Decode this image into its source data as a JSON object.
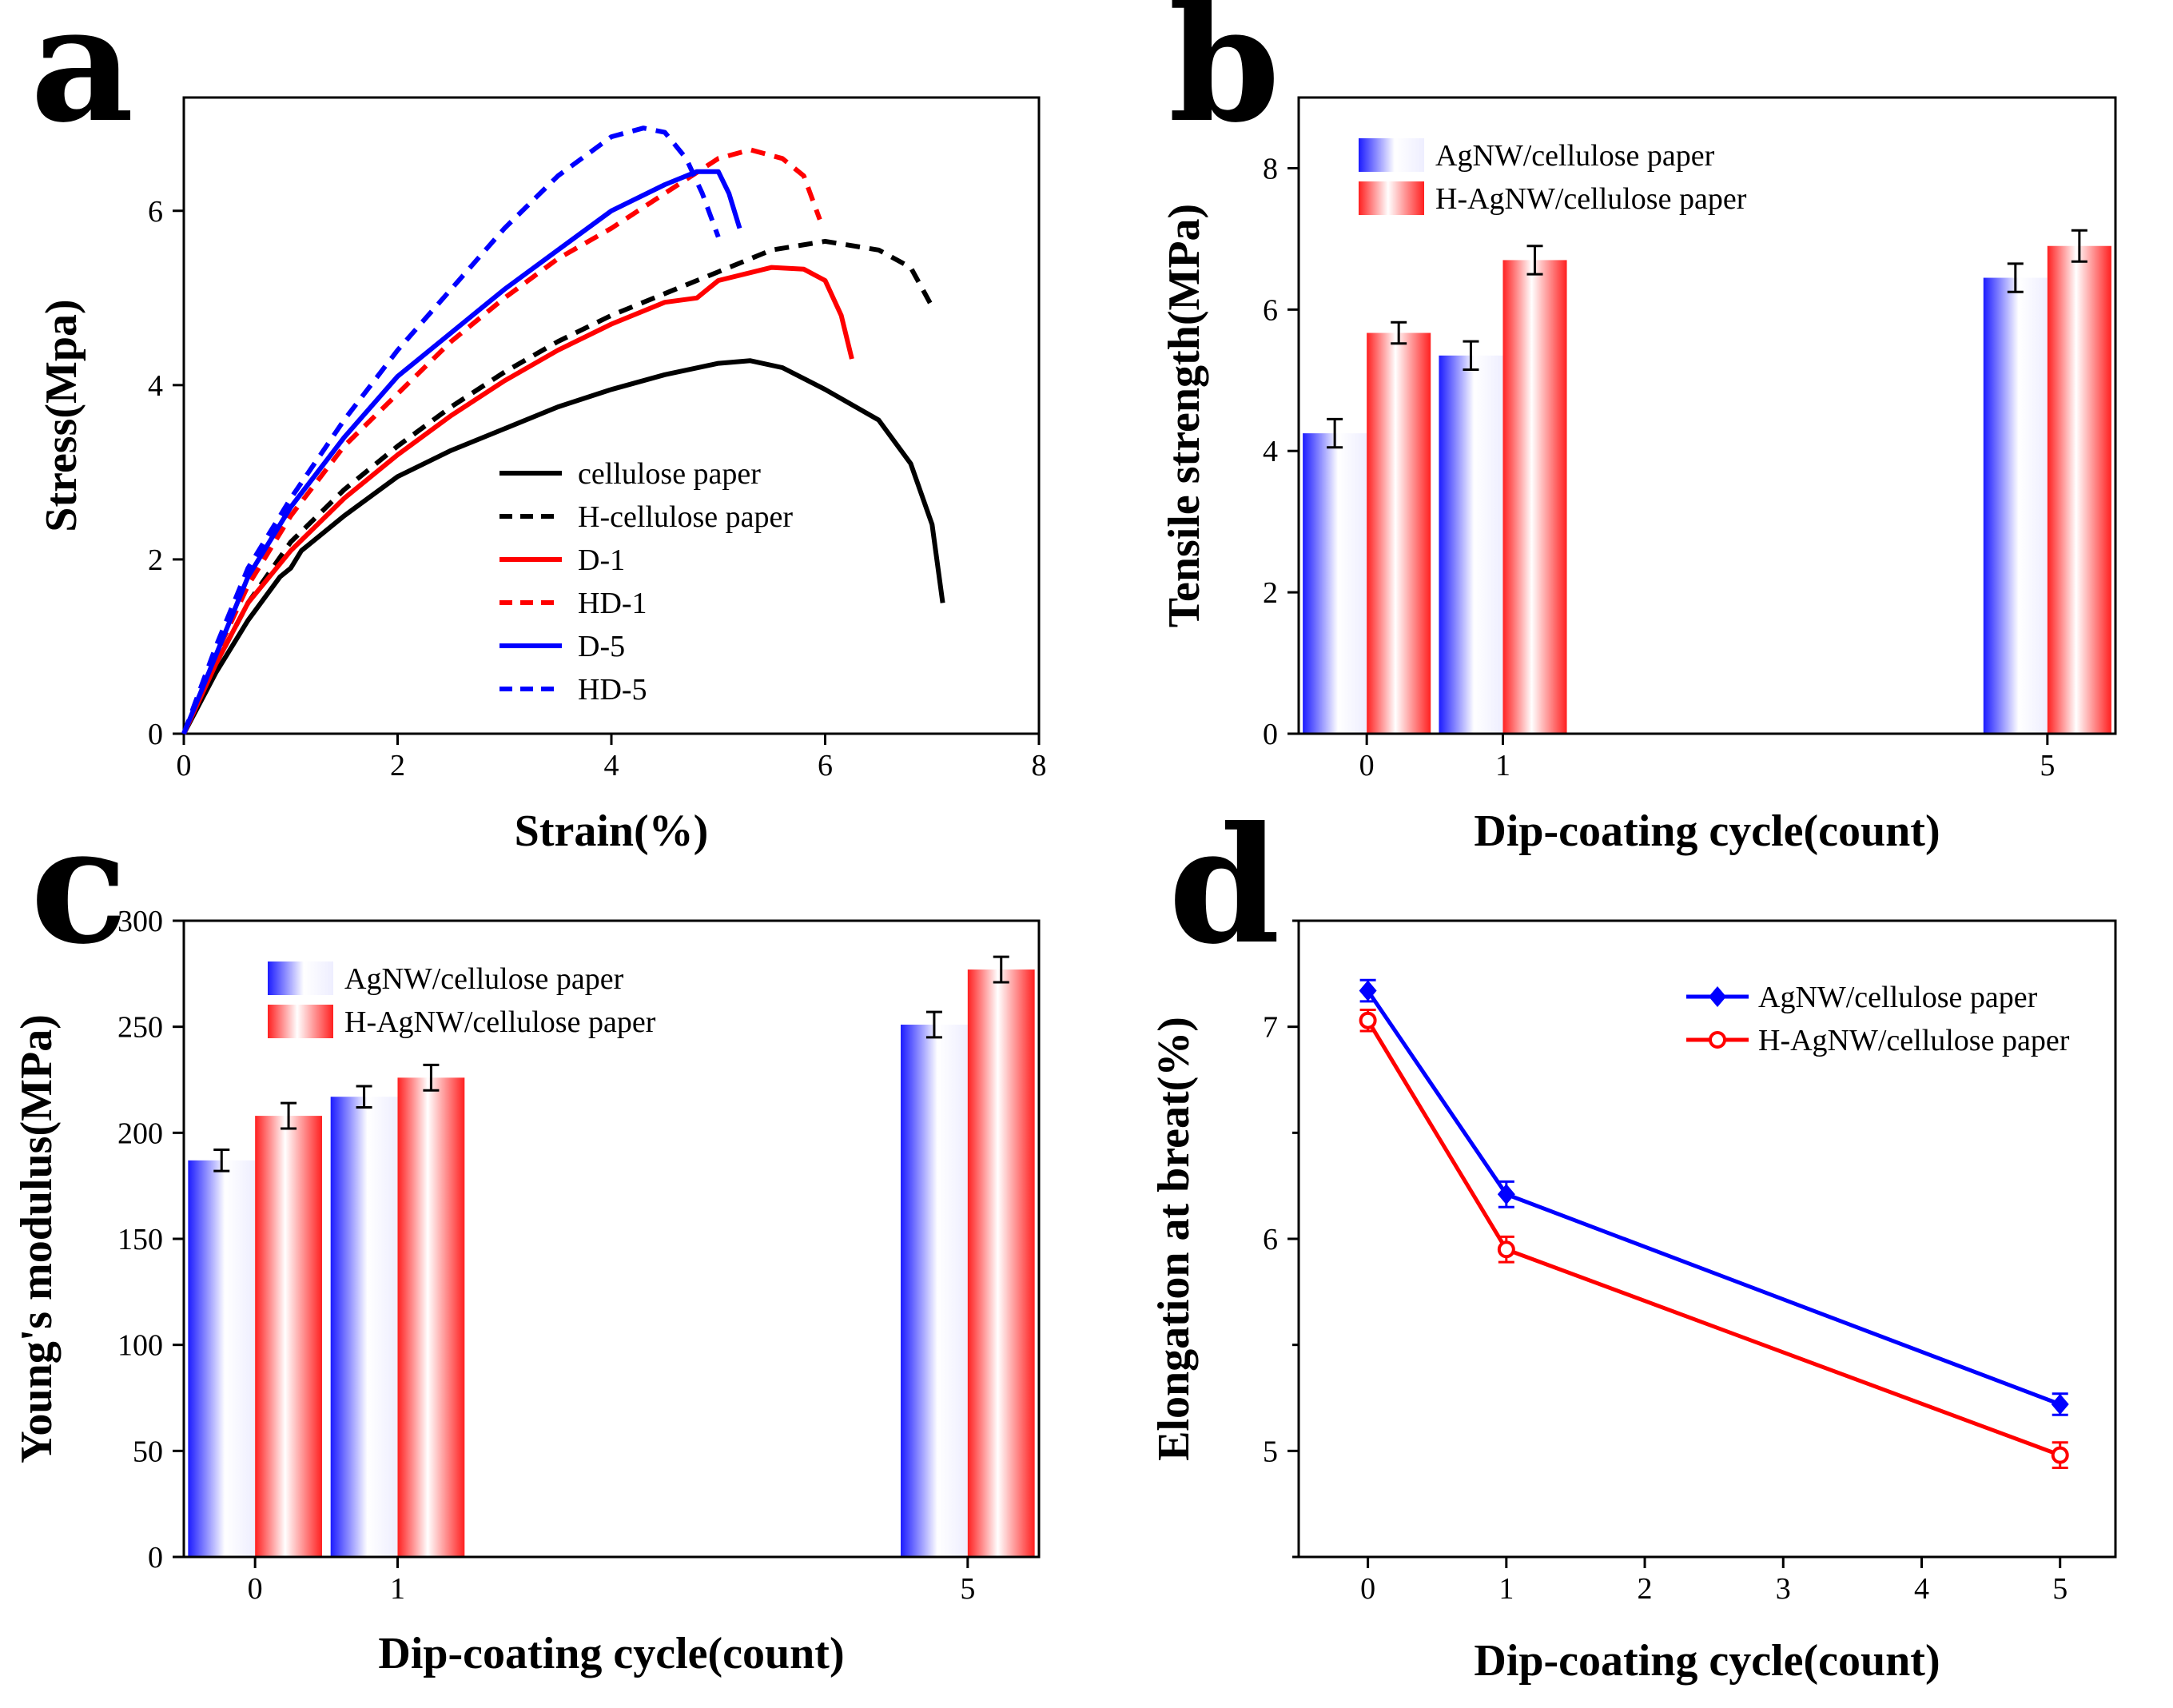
{
  "colors": {
    "black": "#000000",
    "red": "#ff0000",
    "blue": "#0000ff",
    "bar_blue_edge": "#2b2bff",
    "bar_red_edge": "#ff2b2b"
  },
  "chart_data": [
    {
      "id": "a",
      "panel_letter": "a",
      "type": "line",
      "xlabel": "Strain(%)",
      "ylabel": "Stress(Mpa)",
      "xlim": [
        0,
        8
      ],
      "ylim": [
        0,
        7.3
      ],
      "xticks": [
        "0",
        "2",
        "4",
        "6",
        "8"
      ],
      "yticks": [
        "0",
        "2",
        "4",
        "6"
      ],
      "legend": [
        {
          "label": "cellulose paper",
          "color": "#000000",
          "dash": false
        },
        {
          "label": "H-cellulose paper",
          "color": "#000000",
          "dash": true
        },
        {
          "label": "D-1",
          "color": "#ff0000",
          "dash": false
        },
        {
          "label": "HD-1",
          "color": "#ff0000",
          "dash": true
        },
        {
          "label": "D-5",
          "color": "#0000ff",
          "dash": false
        },
        {
          "label": "HD-5",
          "color": "#0000ff",
          "dash": true
        }
      ],
      "series": [
        {
          "name": "cellulose paper",
          "color": "#000000",
          "dash": false,
          "points": [
            [
              0,
              0
            ],
            [
              0.3,
              0.7
            ],
            [
              0.6,
              1.3
            ],
            [
              0.9,
              1.8
            ],
            [
              1.0,
              1.9
            ],
            [
              1.1,
              2.1
            ],
            [
              1.5,
              2.5
            ],
            [
              2,
              2.95
            ],
            [
              2.5,
              3.25
            ],
            [
              3,
              3.5
            ],
            [
              3.5,
              3.75
            ],
            [
              4,
              3.95
            ],
            [
              4.5,
              4.12
            ],
            [
              5,
              4.25
            ],
            [
              5.3,
              4.28
            ],
            [
              5.6,
              4.2
            ],
            [
              6,
              3.95
            ],
            [
              6.5,
              3.6
            ],
            [
              6.8,
              3.1
            ],
            [
              7.0,
              2.4
            ],
            [
              7.1,
              1.5
            ]
          ]
        },
        {
          "name": "H-cellulose paper",
          "color": "#000000",
          "dash": true,
          "points": [
            [
              0,
              0
            ],
            [
              0.3,
              0.8
            ],
            [
              0.6,
              1.5
            ],
            [
              1,
              2.2
            ],
            [
              1.5,
              2.8
            ],
            [
              2,
              3.3
            ],
            [
              2.5,
              3.75
            ],
            [
              3,
              4.15
            ],
            [
              3.5,
              4.5
            ],
            [
              4,
              4.8
            ],
            [
              4.5,
              5.05
            ],
            [
              5,
              5.3
            ],
            [
              5.5,
              5.55
            ],
            [
              6,
              5.65
            ],
            [
              6.5,
              5.55
            ],
            [
              6.8,
              5.35
            ],
            [
              7.0,
              4.9
            ]
          ]
        },
        {
          "name": "D-1",
          "color": "#ff0000",
          "dash": false,
          "points": [
            [
              0,
              0
            ],
            [
              0.3,
              0.8
            ],
            [
              0.6,
              1.5
            ],
            [
              1,
              2.1
            ],
            [
              1.5,
              2.7
            ],
            [
              2,
              3.2
            ],
            [
              2.5,
              3.65
            ],
            [
              3,
              4.05
            ],
            [
              3.5,
              4.4
            ],
            [
              4,
              4.7
            ],
            [
              4.5,
              4.95
            ],
            [
              4.8,
              5.0
            ],
            [
              5,
              5.2
            ],
            [
              5.5,
              5.35
            ],
            [
              5.8,
              5.33
            ],
            [
              6.0,
              5.2
            ],
            [
              6.15,
              4.8
            ],
            [
              6.25,
              4.3
            ]
          ]
        },
        {
          "name": "HD-1",
          "color": "#ff0000",
          "dash": true,
          "points": [
            [
              0,
              0
            ],
            [
              0.3,
              0.9
            ],
            [
              0.6,
              1.7
            ],
            [
              1,
              2.5
            ],
            [
              1.5,
              3.3
            ],
            [
              2,
              3.9
            ],
            [
              2.5,
              4.5
            ],
            [
              3,
              5.0
            ],
            [
              3.5,
              5.45
            ],
            [
              4,
              5.8
            ],
            [
              4.5,
              6.2
            ],
            [
              5,
              6.6
            ],
            [
              5.3,
              6.7
            ],
            [
              5.6,
              6.6
            ],
            [
              5.8,
              6.4
            ],
            [
              5.95,
              5.9
            ]
          ]
        },
        {
          "name": "D-5",
          "color": "#0000ff",
          "dash": false,
          "points": [
            [
              0,
              0
            ],
            [
              0.3,
              0.9
            ],
            [
              0.6,
              1.8
            ],
            [
              1,
              2.6
            ],
            [
              1.5,
              3.4
            ],
            [
              2,
              4.1
            ],
            [
              2.5,
              4.6
            ],
            [
              3,
              5.1
            ],
            [
              3.5,
              5.55
            ],
            [
              4,
              6.0
            ],
            [
              4.5,
              6.3
            ],
            [
              4.8,
              6.45
            ],
            [
              5.0,
              6.45
            ],
            [
              5.1,
              6.2
            ],
            [
              5.2,
              5.8
            ]
          ]
        },
        {
          "name": "HD-5",
          "color": "#0000ff",
          "dash": true,
          "points": [
            [
              0,
              0
            ],
            [
              0.3,
              1.0
            ],
            [
              0.6,
              1.9
            ],
            [
              1,
              2.7
            ],
            [
              1.5,
              3.6
            ],
            [
              2,
              4.4
            ],
            [
              2.5,
              5.1
            ],
            [
              3,
              5.8
            ],
            [
              3.5,
              6.4
            ],
            [
              4,
              6.85
            ],
            [
              4.3,
              6.95
            ],
            [
              4.5,
              6.9
            ],
            [
              4.7,
              6.6
            ],
            [
              4.85,
              6.2
            ],
            [
              5.0,
              5.7
            ]
          ]
        }
      ]
    },
    {
      "id": "b",
      "panel_letter": "b",
      "type": "bar",
      "xlabel": "Dip-coating cycle(count)",
      "ylabel": "Tensile strength(MPa)",
      "ylim": [
        0,
        9
      ],
      "yticks": [
        "0",
        "2",
        "4",
        "6",
        "8"
      ],
      "xlim": [
        -0.5,
        5.5
      ],
      "categories": [
        "0",
        "1",
        "5"
      ],
      "legend": [
        "AgNW/cellulose paper",
        "H-AgNW/cellulose paper"
      ],
      "series": [
        {
          "name": "AgNW/cellulose paper",
          "color": "#0000ff",
          "values": [
            4.25,
            5.35,
            6.45
          ],
          "errors": [
            0.2,
            0.2,
            0.2
          ]
        },
        {
          "name": "H-AgNW/cellulose paper",
          "color": "#ff0000",
          "values": [
            5.67,
            6.7,
            6.9
          ],
          "errors": [
            0.15,
            0.2,
            0.22
          ]
        }
      ]
    },
    {
      "id": "c",
      "panel_letter": "c",
      "type": "bar",
      "xlabel": "Dip-coating cycle(count)",
      "ylabel": "Young's modulus(MPa)",
      "ylim": [
        0,
        300
      ],
      "yticks": [
        "0",
        "50",
        "100",
        "150",
        "200",
        "250",
        "300"
      ],
      "xlim": [
        -0.5,
        5.5
      ],
      "categories": [
        "0",
        "1",
        "5"
      ],
      "legend": [
        "AgNW/cellulose paper",
        "H-AgNW/cellulose paper"
      ],
      "series": [
        {
          "name": "AgNW/cellulose paper",
          "color": "#0000ff",
          "values": [
            187,
            217,
            251
          ],
          "errors": [
            5,
            5,
            6
          ]
        },
        {
          "name": "H-AgNW/cellulose paper",
          "color": "#ff0000",
          "values": [
            208,
            226,
            277
          ],
          "errors": [
            6,
            6,
            6
          ]
        }
      ]
    },
    {
      "id": "d",
      "panel_letter": "d",
      "type": "line",
      "xlabel": "Dip-coating cycle(count)",
      "ylabel": "Elongation at breat(%)",
      "xlim": [
        -0.5,
        5.4
      ],
      "ylim": [
        4.5,
        7.5
      ],
      "xticks": [
        "0",
        "1",
        "2",
        "3",
        "4",
        "5"
      ],
      "yticks": [
        "5",
        "6",
        "7"
      ],
      "legend": [
        "AgNW/cellulose paper",
        "H-AgNW/cellulose paper"
      ],
      "series": [
        {
          "name": "AgNW/cellulose paper",
          "color": "#0000ff",
          "marker": "diamond",
          "x": [
            0,
            1,
            5
          ],
          "values": [
            7.17,
            6.21,
            5.22
          ],
          "errors": [
            0.05,
            0.06,
            0.05
          ]
        },
        {
          "name": "H-AgNW/cellulose paper",
          "color": "#ff0000",
          "marker": "circle",
          "x": [
            0,
            1,
            5
          ],
          "values": [
            7.03,
            5.95,
            4.98
          ],
          "errors": [
            0.05,
            0.06,
            0.06
          ]
        }
      ]
    }
  ]
}
